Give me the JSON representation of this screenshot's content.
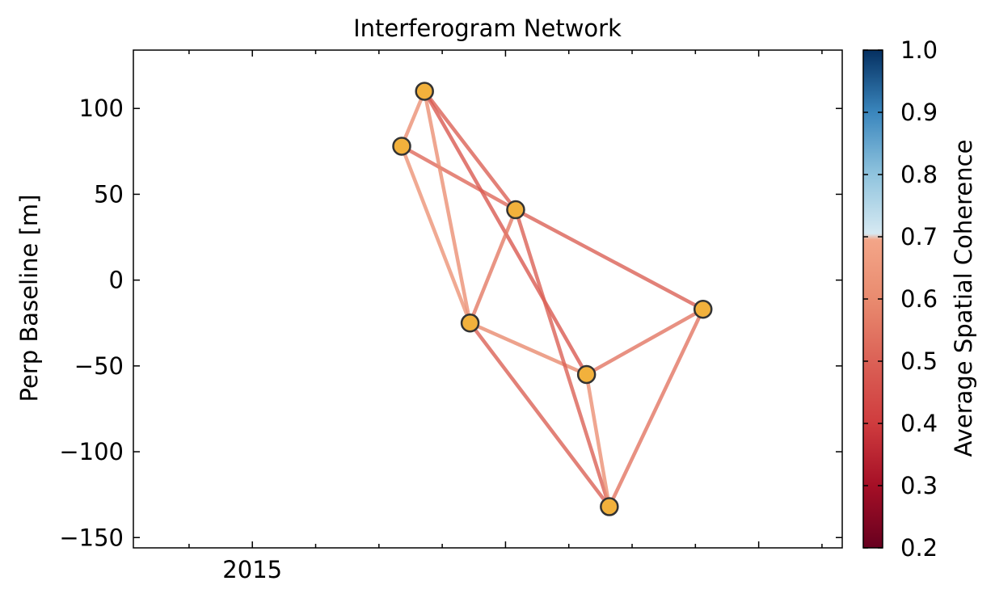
{
  "chart_data": {
    "type": "scatter",
    "title": "Interferogram Network",
    "xlabel": "",
    "ylabel": "Perp Baseline [m]",
    "xlim": [
      2014.53,
      2017.33
    ],
    "ylim": [
      -156,
      134
    ],
    "x_tick_labels": [
      {
        "value": 2015.0,
        "label": "2015"
      }
    ],
    "y_ticks": [
      100,
      50,
      0,
      -50,
      -100,
      -150
    ],
    "y_tick_labels": [
      "100",
      "50",
      "0",
      "−50",
      "−100",
      "−150"
    ],
    "grid": false,
    "nodes": [
      {
        "x": 2015.59,
        "y": 78
      },
      {
        "x": 2015.68,
        "y": 110
      },
      {
        "x": 2015.86,
        "y": -25
      },
      {
        "x": 2016.04,
        "y": 41
      },
      {
        "x": 2016.32,
        "y": -55
      },
      {
        "x": 2016.41,
        "y": -132
      },
      {
        "x": 2016.78,
        "y": -17
      }
    ],
    "edges": [
      {
        "from": 0,
        "to": 1,
        "coherence": 0.62
      },
      {
        "from": 0,
        "to": 2,
        "coherence": 0.63
      },
      {
        "from": 0,
        "to": 3,
        "coherence": 0.52
      },
      {
        "from": 1,
        "to": 2,
        "coherence": 0.62
      },
      {
        "from": 1,
        "to": 3,
        "coherence": 0.5
      },
      {
        "from": 1,
        "to": 4,
        "coherence": 0.48
      },
      {
        "from": 2,
        "to": 3,
        "coherence": 0.56
      },
      {
        "from": 2,
        "to": 4,
        "coherence": 0.6
      },
      {
        "from": 2,
        "to": 5,
        "coherence": 0.5
      },
      {
        "from": 3,
        "to": 6,
        "coherence": 0.5
      },
      {
        "from": 3,
        "to": 5,
        "coherence": 0.5
      },
      {
        "from": 4,
        "to": 5,
        "coherence": 0.62
      },
      {
        "from": 4,
        "to": 6,
        "coherence": 0.55
      },
      {
        "from": 5,
        "to": 6,
        "coherence": 0.55
      }
    ],
    "node_color": "#f2b13c",
    "node_edge_color": "#333333",
    "colorbar": {
      "label": "Average Spatial Coherence",
      "min": 0.2,
      "max": 1.0,
      "ticks": [
        "0.2",
        "0.3",
        "0.4",
        "0.5",
        "0.6",
        "0.7",
        "0.8",
        "0.9",
        "1.0"
      ],
      "colormap": "RdBu",
      "stops": [
        {
          "v": 0.2,
          "c": "#67001f"
        },
        {
          "v": 0.3,
          "c": "#a50f26"
        },
        {
          "v": 0.4,
          "c": "#cf3c3e"
        },
        {
          "v": 0.5,
          "c": "#db6156"
        },
        {
          "v": 0.6,
          "c": "#e98b6f"
        },
        {
          "v": 0.695,
          "c": "#f3a588"
        },
        {
          "v": 0.705,
          "c": "#d6e9f2"
        },
        {
          "v": 0.8,
          "c": "#90c4de"
        },
        {
          "v": 0.9,
          "c": "#3a86bd"
        },
        {
          "v": 1.0,
          "c": "#053061"
        }
      ]
    }
  }
}
